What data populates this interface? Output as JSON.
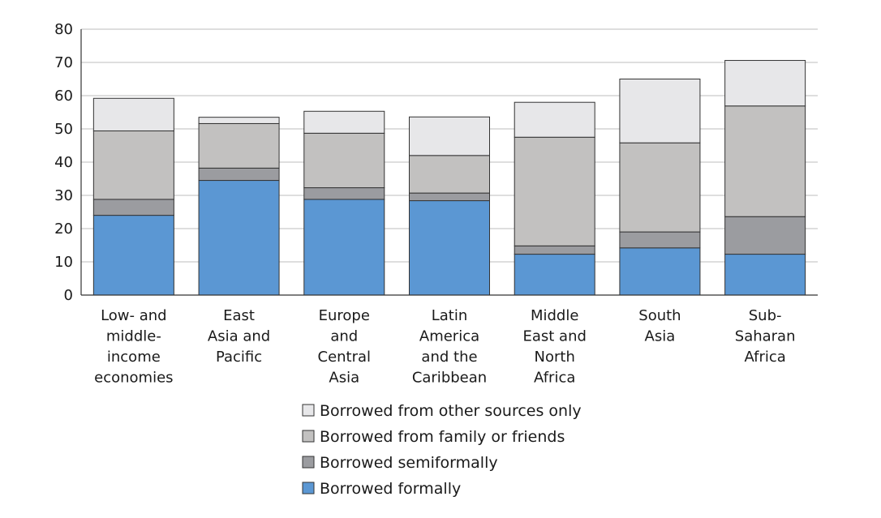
{
  "chart_data": {
    "type": "bar",
    "stacked": true,
    "categories": [
      "Low- and middle- income economies",
      "East Asia and Pacific",
      "Europe and Central Asia",
      "Latin America and the Caribbean",
      "Middle East and North Africa",
      "South Asia",
      "Sub- Saharan Africa"
    ],
    "category_lines": [
      [
        "Low- and",
        "middle-",
        "income",
        "economies"
      ],
      [
        "East",
        "Asia and",
        "Pacific"
      ],
      [
        "Europe",
        "and",
        "Central",
        "Asia"
      ],
      [
        "Latin",
        "America",
        "and the",
        "Caribbean"
      ],
      [
        "Middle",
        "East and",
        "North",
        "Africa"
      ],
      [
        "South",
        "Asia"
      ],
      [
        "Sub-",
        "Saharan",
        "Africa"
      ]
    ],
    "series": [
      {
        "name": "Borrowed formally",
        "color": "#5b97d3",
        "values": [
          24,
          34.5,
          28.8,
          28.4,
          12.3,
          14.2,
          12.3
        ]
      },
      {
        "name": "Borrowed semiformally",
        "color": "#9b9ca0",
        "values": [
          4.8,
          3.7,
          3.5,
          2.3,
          2.5,
          4.8,
          11.3
        ]
      },
      {
        "name": "Borrowed from family or friends",
        "color": "#c2c1c0",
        "values": [
          20.6,
          13.4,
          16.4,
          11.3,
          32.7,
          26.8,
          33.3
        ]
      },
      {
        "name": "Borrowed from other sources only",
        "color": "#e7e7e9",
        "values": [
          9.8,
          1.9,
          6.6,
          11.6,
          10.5,
          19.2,
          13.7
        ]
      }
    ],
    "legend_order": [
      "Borrowed from other sources only",
      "Borrowed from family or friends",
      "Borrowed semiformally",
      "Borrowed formally"
    ],
    "ylim": [
      0,
      80
    ],
    "yticks": [
      "0",
      "10",
      "20",
      "30",
      "40",
      "50",
      "60",
      "70",
      "80"
    ],
    "grid": true,
    "legend_position": "bottom-center",
    "title": "",
    "xlabel": "",
    "ylabel": ""
  }
}
